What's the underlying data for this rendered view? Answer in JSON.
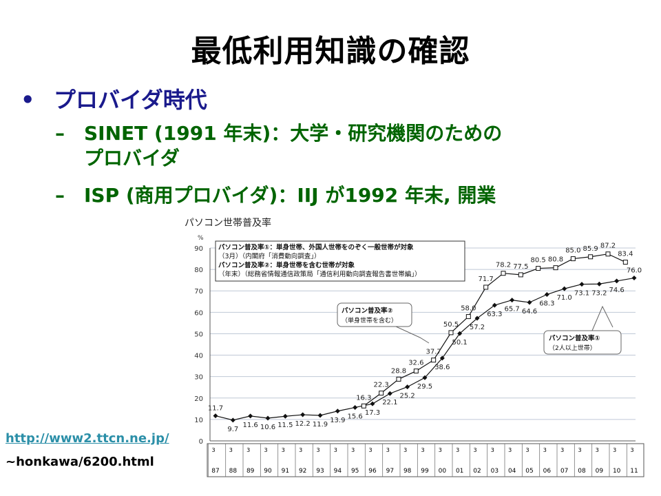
{
  "slide": {
    "title": "最低利用知識の確認",
    "bullet": "プロバイダ時代",
    "bullet_marker": "•",
    "subitems": [
      {
        "dash": "–",
        "line1": "SINET (1991 年末)：大学・研究機関のための",
        "line2": "プロバイダ"
      },
      {
        "dash": "–",
        "line1": "ISP (商用プロバイダ)：IIJ が1992 年末, 開業",
        "line2": ""
      }
    ],
    "link_text": "http://www2.ttcn.ne.jp/",
    "link_text2": "~honkawa/6200.html"
  },
  "chart_data": {
    "type": "line",
    "title": "パソコン世帯普及率",
    "ylabel": "%",
    "ylim": [
      0,
      90
    ],
    "yticks": [
      0,
      10,
      20,
      30,
      40,
      50,
      60,
      70,
      80,
      90
    ],
    "grid": true,
    "x_year_labels": [
      "87",
      "88",
      "89",
      "90",
      "91",
      "92",
      "93",
      "94",
      "95",
      "96",
      "97",
      "98",
      "99",
      "00",
      "01",
      "02",
      "03",
      "04",
      "05",
      "06",
      "07",
      "08",
      "09",
      "10",
      "11"
    ],
    "x_top_markers": [
      "3月",
      "年末"
    ],
    "series": [
      {
        "name": "パソコン普及率①",
        "marker": "filled-diamond",
        "points": [
          {
            "x": 0,
            "y": 11.7,
            "label": "11.7"
          },
          {
            "x": 1,
            "y": 9.7,
            "label": "9.7"
          },
          {
            "x": 2,
            "y": 11.6,
            "label": "11.6"
          },
          {
            "x": 3,
            "y": 10.6,
            "label": "10.6"
          },
          {
            "x": 4,
            "y": 11.5,
            "label": "11.5"
          },
          {
            "x": 5,
            "y": 12.2,
            "label": "12.2"
          },
          {
            "x": 6,
            "y": 11.9,
            "label": "11.9"
          },
          {
            "x": 7,
            "y": 13.9,
            "label": "13.9"
          },
          {
            "x": 8,
            "y": 15.6,
            "label": "15.6"
          },
          {
            "x": 9,
            "y": 17.3,
            "label": "17.3"
          },
          {
            "x": 10,
            "y": 22.1,
            "label": "22.1"
          },
          {
            "x": 11,
            "y": 25.2,
            "label": "25.2"
          },
          {
            "x": 12,
            "y": 29.5,
            "label": "29.5"
          },
          {
            "x": 13,
            "y": 38.6,
            "label": "38.6"
          },
          {
            "x": 14,
            "y": 50.1,
            "label": "50.1"
          },
          {
            "x": 15,
            "y": 57.2,
            "label": "57.2"
          },
          {
            "x": 16,
            "y": 63.3,
            "label": "63.3"
          },
          {
            "x": 17,
            "y": 65.7,
            "label": "65.7"
          },
          {
            "x": 18,
            "y": 64.6,
            "label": "64.6"
          },
          {
            "x": 19,
            "y": 68.3,
            "label": "68.3"
          },
          {
            "x": 20,
            "y": 71.0,
            "label": "71.0"
          },
          {
            "x": 21,
            "y": 73.1,
            "label": "73.1"
          },
          {
            "x": 22,
            "y": 73.2,
            "label": "73.2"
          },
          {
            "x": 23,
            "y": 74.6,
            "label": "74.6"
          },
          {
            "x": 24,
            "y": 76.0,
            "label": "76.0"
          }
        ]
      },
      {
        "name": "パソコン普及率②",
        "marker": "open-square",
        "points": [
          {
            "x": 8.5,
            "y": 16.3,
            "label": "16.3"
          },
          {
            "x": 9.5,
            "y": 22.3,
            "label": "22.3"
          },
          {
            "x": 10.5,
            "y": 28.8,
            "label": "28.8"
          },
          {
            "x": 11.5,
            "y": 32.6,
            "label": "32.6"
          },
          {
            "x": 12.5,
            "y": 37.7,
            "label": "37.7"
          },
          {
            "x": 13.5,
            "y": 50.5,
            "label": "50.5"
          },
          {
            "x": 14.5,
            "y": 58.0,
            "label": "58.0"
          },
          {
            "x": 15.5,
            "y": 71.7,
            "label": "71.7"
          },
          {
            "x": 16.5,
            "y": 78.2,
            "label": "78.2"
          },
          {
            "x": 17.5,
            "y": 77.5,
            "label": "77.5"
          },
          {
            "x": 18.5,
            "y": 80.5,
            "label": "80.5"
          },
          {
            "x": 19.5,
            "y": 80.8,
            "label": "80.8"
          },
          {
            "x": 20.5,
            "y": 85.0,
            "label": "85.0"
          },
          {
            "x": 21.5,
            "y": 85.9,
            "label": "85.9"
          },
          {
            "x": 22.5,
            "y": 87.2,
            "label": "87.2"
          },
          {
            "x": 23.5,
            "y": 83.4,
            "label": "83.4"
          }
        ]
      }
    ],
    "annotations": {
      "legend_box": [
        "パソコン普及率①：単身世帯、外国人世帯をのぞく一般世帯が対象",
        "（3月）（内閣府「消費動向調査」）",
        "パソコン普及率②：単身世帯を含む世帯が対象",
        "（年末）（総務省情報通信政策局「通信利用動向調査報告書世帯編」）"
      ],
      "callout2": [
        "パソコン普及率②",
        "（単身世帯を含む）"
      ],
      "callout1": [
        "パソコン普及率①",
        "（2人以上世帯）"
      ]
    }
  }
}
